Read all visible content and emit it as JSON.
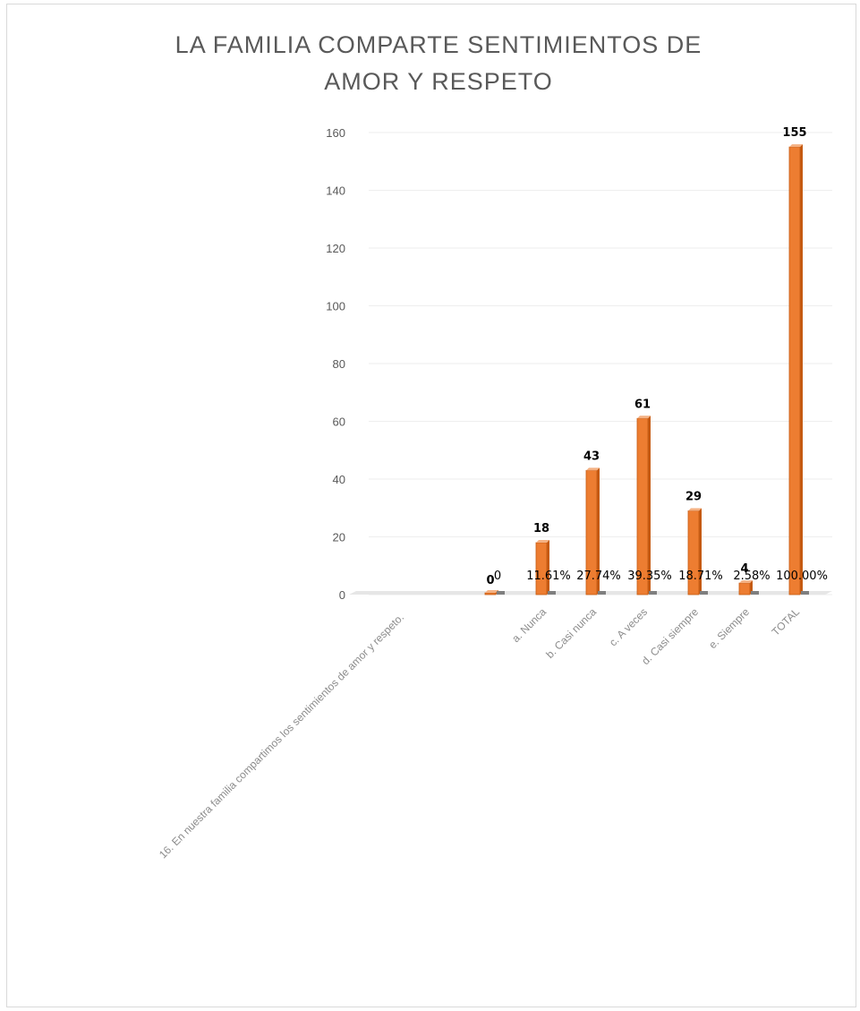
{
  "chart_data": {
    "type": "bar",
    "title": "LA FAMILIA  COMPARTE SENTIMIENTOS  DE AMOR  Y  RESPETO",
    "title_lines": [
      "LA FAMILIA  COMPARTE SENTIMIENTOS  DE",
      "AMOR  Y  RESPETO"
    ],
    "xlabel": "",
    "ylabel": "",
    "ylim": [
      0,
      160
    ],
    "yticks": [
      0,
      20,
      40,
      60,
      80,
      100,
      120,
      140,
      160
    ],
    "grid": true,
    "categories": [
      "16. En nuestra familia compartimos los sentimientos de amor y respeto.",
      "",
      "a. Nunca",
      "b. Casi nunca",
      "c. A veces",
      "d. Casi siempre",
      "e. Siempre",
      "TOTAL"
    ],
    "series": [
      {
        "values": [
          null,
          0,
          18,
          43,
          61,
          29,
          4,
          155
        ],
        "labels": [
          "",
          "0",
          "18",
          "43",
          "61",
          "29",
          "4",
          "155"
        ]
      },
      {
        "values": [
          null,
          0,
          0.1161,
          0.2774,
          0.3935,
          0.1871,
          0.0258,
          1.0
        ],
        "labels": [
          "",
          "0",
          "11.61%",
          "27.74%",
          "39.35%",
          "18.71%",
          "2.58%",
          "100.00%"
        ]
      }
    ],
    "colors": {
      "bar": "#ed7d31",
      "bar_secondary": "#7f7f7f",
      "grid": "#eeeeee",
      "axis_text": "#595959"
    }
  }
}
